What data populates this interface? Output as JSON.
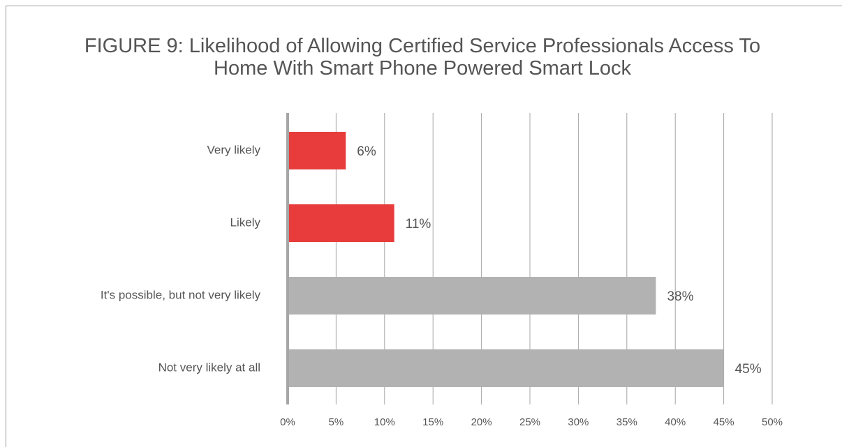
{
  "chart_data": {
    "type": "barh",
    "title": "FIGURE 9: Likelihood of Allowing Certified Service Professionals Access To Home With Smart Phone Powered Smart Lock",
    "categories": [
      "Very likely",
      "Likely",
      "It's possible, but not very likely",
      "Not very likely at all"
    ],
    "values": [
      6,
      11,
      38,
      45
    ],
    "value_labels": [
      "6%",
      "11%",
      "38%",
      "45%"
    ],
    "colors": [
      "#e83c3c",
      "#e83c3c",
      "#b2b2b3",
      "#b2b2b3"
    ],
    "xlim": [
      0,
      50
    ],
    "xticks": [
      {
        "value": 0,
        "label": "0%"
      },
      {
        "value": 5,
        "label": "5%"
      },
      {
        "value": 10,
        "label": "10%"
      },
      {
        "value": 15,
        "label": "15%"
      },
      {
        "value": 20,
        "label": "20%"
      },
      {
        "value": 25,
        "label": "25%"
      },
      {
        "value": 30,
        "label": "30%"
      },
      {
        "value": 35,
        "label": "35%"
      },
      {
        "value": 40,
        "label": "40%"
      },
      {
        "value": 45,
        "label": "45%"
      },
      {
        "value": 50,
        "label": "50%"
      }
    ],
    "grid": true
  }
}
